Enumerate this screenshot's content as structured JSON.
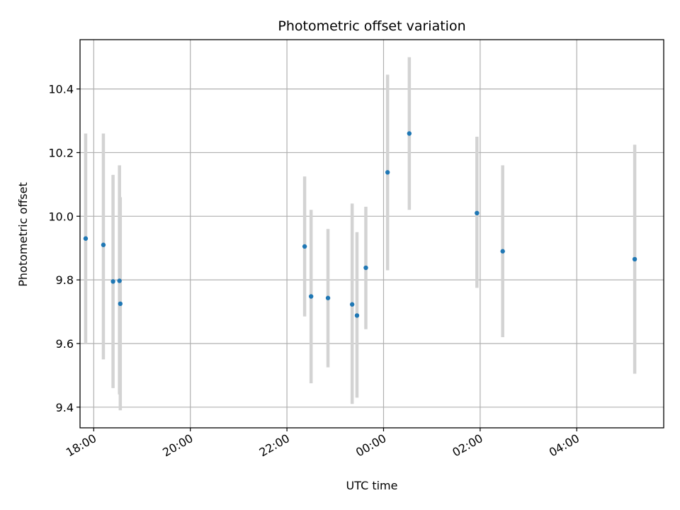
{
  "chart_data": {
    "type": "scatter",
    "title": "Photometric offset variation",
    "xlabel": "UTC time",
    "ylabel": "Photometric offset",
    "x_unit": "hours after 18:00 UTC (date axis)",
    "xlim": [
      "17:43",
      "05:48"
    ],
    "ylim": [
      9.335,
      10.555
    ],
    "x_ticks": [
      "18:00",
      "20:00",
      "22:00",
      "00:00",
      "02:00",
      "04:00"
    ],
    "y_ticks": [
      "9.4",
      "9.6",
      "9.8",
      "10.0",
      "10.2",
      "10.4"
    ],
    "grid": true,
    "colors": {
      "point": "#1f77b4",
      "errorbar": "#d3d3d3",
      "grid": "#b0b0b0"
    },
    "points": [
      {
        "x": "17:50",
        "y": 9.93,
        "low": 9.6,
        "high": 10.26
      },
      {
        "x": "18:12",
        "y": 9.91,
        "low": 9.55,
        "high": 10.26
      },
      {
        "x": "18:24",
        "y": 9.795,
        "low": 9.46,
        "high": 10.13
      },
      {
        "x": "18:32",
        "y": 9.797,
        "low": 9.44,
        "high": 10.16
      },
      {
        "x": "18:33",
        "y": 9.725,
        "low": 9.39,
        "high": 10.06
      },
      {
        "x": "22:22",
        "y": 9.905,
        "low": 9.685,
        "high": 10.125
      },
      {
        "x": "22:30",
        "y": 9.748,
        "low": 9.475,
        "high": 10.02
      },
      {
        "x": "22:51",
        "y": 9.743,
        "low": 9.525,
        "high": 9.96
      },
      {
        "x": "23:21",
        "y": 9.723,
        "low": 9.41,
        "high": 10.04
      },
      {
        "x": "23:27",
        "y": 9.688,
        "low": 9.43,
        "high": 9.95
      },
      {
        "x": "23:38",
        "y": 9.838,
        "low": 9.645,
        "high": 10.03
      },
      {
        "x": "00:05",
        "y": 10.138,
        "low": 9.83,
        "high": 10.445
      },
      {
        "x": "00:32",
        "y": 10.26,
        "low": 10.02,
        "high": 10.5
      },
      {
        "x": "01:56",
        "y": 10.01,
        "low": 9.775,
        "high": 10.25
      },
      {
        "x": "02:28",
        "y": 9.89,
        "low": 9.62,
        "high": 10.16
      },
      {
        "x": "05:12",
        "y": 9.865,
        "low": 9.505,
        "high": 10.225
      }
    ]
  }
}
